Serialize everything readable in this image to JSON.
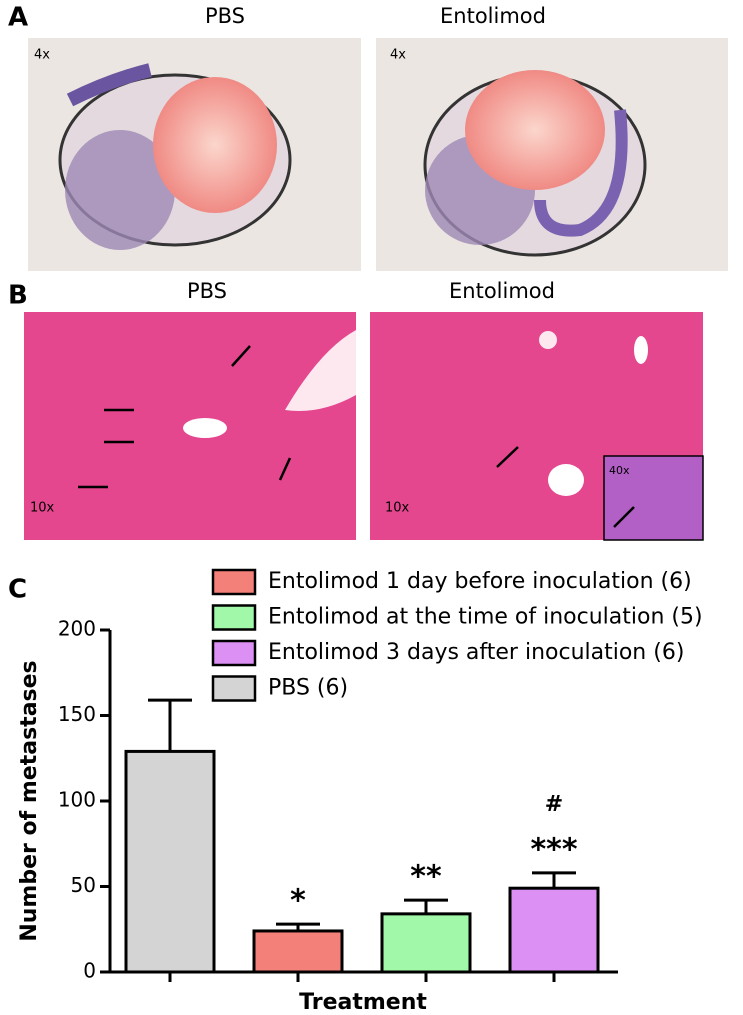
{
  "panels": {
    "a": {
      "label": "A",
      "titles": [
        "PBS",
        "Entolimod"
      ],
      "magnifications": [
        "4x",
        "4x"
      ]
    },
    "b": {
      "label": "B",
      "titles": [
        "PBS",
        "Entolimod"
      ],
      "magnifications": [
        "10x",
        "10x"
      ],
      "inset_magnification": "40x"
    },
    "c": {
      "label": "C"
    }
  },
  "chart_data": {
    "type": "bar",
    "ylabel": "Number of metastases",
    "xlabel": "Treatment",
    "categories": [
      null,
      null,
      null,
      null
    ],
    "ylim": [
      0,
      200
    ],
    "yticks": [
      0,
      50,
      100,
      150,
      200
    ],
    "series": [
      {
        "name": "Entolimod 1 day before inoculation (6)",
        "color": "#f4807a",
        "values": [
          null,
          24,
          null,
          null
        ],
        "errors": [
          null,
          4,
          null,
          null
        ],
        "annotations": [
          "*"
        ]
      },
      {
        "name": "Entolimod at the time of inoculation (5)",
        "color": "#a0f8a8",
        "values": [
          null,
          null,
          34,
          null
        ],
        "errors": [
          null,
          null,
          8,
          null
        ],
        "annotations": [
          "**"
        ]
      },
      {
        "name": "Entolimod 3 days after inoculation (6)",
        "color": "#dc90f4",
        "values": [
          null,
          null,
          null,
          49
        ],
        "errors": [
          null,
          null,
          null,
          9
        ],
        "annotations": [
          "***",
          "#"
        ]
      },
      {
        "name": "PBS (6)",
        "color": "#d4d4d4",
        "values": [
          129,
          null,
          null,
          null
        ],
        "errors": [
          30,
          null,
          null,
          null
        ]
      }
    ]
  }
}
